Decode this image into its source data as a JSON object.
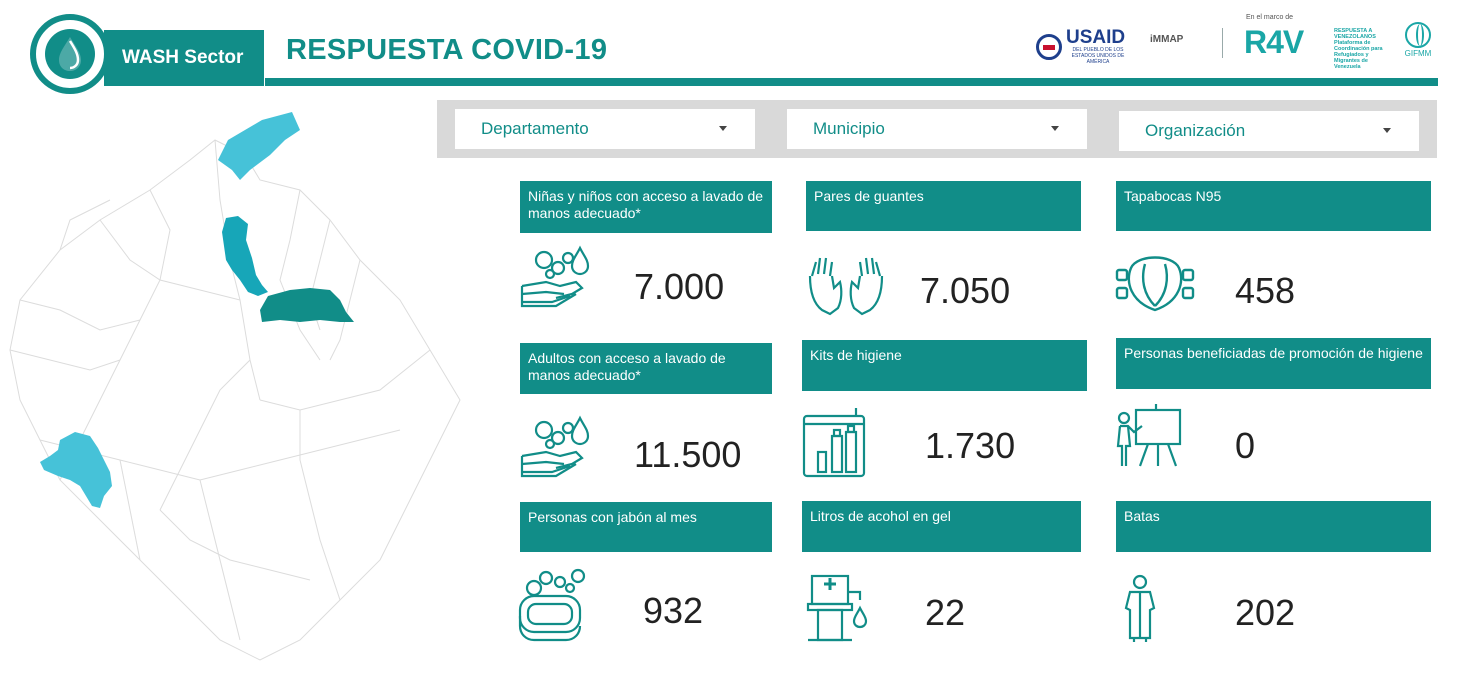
{
  "header": {
    "sector_label": "WASH Sector",
    "title": "RESPUESTA COVID-19"
  },
  "partners": {
    "usaid": "USAID",
    "usaid_sub": "DEL PUEBLO DE LOS ESTADOS UNIDOS DE AMÉRICA",
    "immap": "iMMAP",
    "r4v_context": "En el marco de",
    "r4v": "R4V",
    "r4v_sub": "RESPUESTA A VENEZOLANOS Plataforma de Coordinación para Refugiados y Migrantes de Venezuela",
    "gifmm": "GIFMM"
  },
  "filters": [
    {
      "label": "Departamento"
    },
    {
      "label": "Municipio"
    },
    {
      "label": "Organización"
    }
  ],
  "colors": {
    "accent": "#118d88",
    "map_light": "#46c2d8",
    "map_mid": "#17a6b8",
    "map_dark": "#118d88"
  },
  "cards": [
    {
      "label": "Niñas y niños con acceso a lavado de manos adecuado*",
      "value": "7.000",
      "icon": "handwash-icon"
    },
    {
      "label": "Pares de guantes",
      "value": "7.050",
      "icon": "gloves-icon"
    },
    {
      "label": "Tapabocas N95",
      "value": "458",
      "icon": "mask-icon"
    },
    {
      "label": "Adultos con acceso a lavado de manos adecuado*",
      "value": "11.500",
      "icon": "handwash-icon"
    },
    {
      "label": "Kits de higiene",
      "value": "1.730",
      "icon": "hygiene-kit-icon"
    },
    {
      "label": "Personas beneficiadas de promoción de higiene",
      "value": "0",
      "icon": "presentation-icon"
    },
    {
      "label": "Personas con jabón al mes",
      "value": "932",
      "icon": "soap-icon"
    },
    {
      "label": "Litros de acohol en gel",
      "value": "22",
      "icon": "gel-dispenser-icon"
    },
    {
      "label": "Batas",
      "value": "202",
      "icon": "gown-icon"
    }
  ]
}
